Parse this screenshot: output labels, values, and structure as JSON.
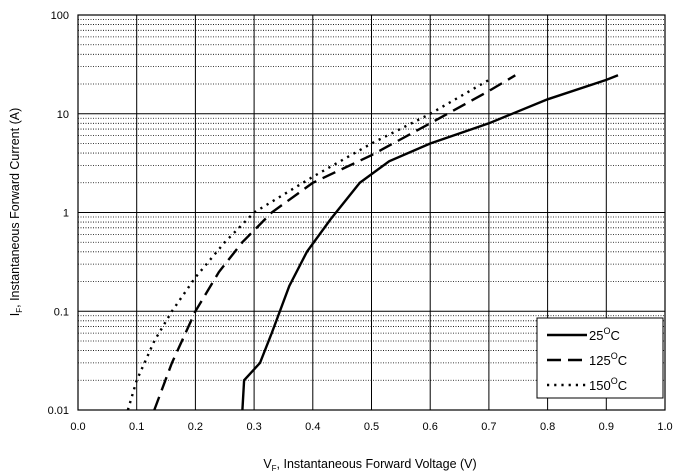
{
  "chart_data": {
    "type": "line",
    "x_scale": "linear",
    "y_scale": "log",
    "xlim": [
      0.0,
      1.0
    ],
    "ylim": [
      0.01,
      100
    ],
    "grid": true,
    "legend_position": "bottom-right",
    "xlabel": {
      "main": "V",
      "sub": "F",
      "rest": ", Instantaneous Forward Voltage (V)"
    },
    "ylabel": {
      "main": "I",
      "sub": "F",
      "rest": ", Instantaneous Forward Current (A)"
    },
    "x_ticks": [
      "0.0",
      "0.1",
      "0.2",
      "0.3",
      "0.4",
      "0.5",
      "0.6",
      "0.7",
      "0.8",
      "0.9",
      "1.0"
    ],
    "y_ticks": [
      "0.01",
      "0.1",
      "1",
      "10",
      "100"
    ],
    "series": [
      {
        "name": "25",
        "unit_sup": "O",
        "unit": "C",
        "dash": "solid",
        "x": [
          0.28,
          0.283,
          0.31,
          0.33,
          0.36,
          0.39,
          0.43,
          0.48,
          0.53,
          0.6,
          0.7,
          0.8,
          0.9,
          0.92
        ],
        "y": [
          0.01,
          0.02,
          0.03,
          0.06,
          0.18,
          0.4,
          0.85,
          2.0,
          3.3,
          5.0,
          8.0,
          14.0,
          22.0,
          24.5
        ]
      },
      {
        "name": "125",
        "unit_sup": "O",
        "unit": "C",
        "dash": "dashed",
        "x": [
          0.13,
          0.16,
          0.2,
          0.24,
          0.28,
          0.33,
          0.4,
          0.5,
          0.6,
          0.7,
          0.745
        ],
        "y": [
          0.01,
          0.03,
          0.1,
          0.25,
          0.5,
          1.0,
          2.0,
          3.8,
          8.0,
          17.0,
          24.5
        ]
      },
      {
        "name": "150",
        "unit_sup": "O",
        "unit": "C",
        "dash": "dotted",
        "x": [
          0.085,
          0.1,
          0.13,
          0.16,
          0.2,
          0.25,
          0.3,
          0.4,
          0.5,
          0.6,
          0.7
        ],
        "y": [
          0.01,
          0.02,
          0.05,
          0.1,
          0.22,
          0.5,
          1.0,
          2.3,
          5.0,
          10.0,
          22.0
        ]
      }
    ]
  }
}
